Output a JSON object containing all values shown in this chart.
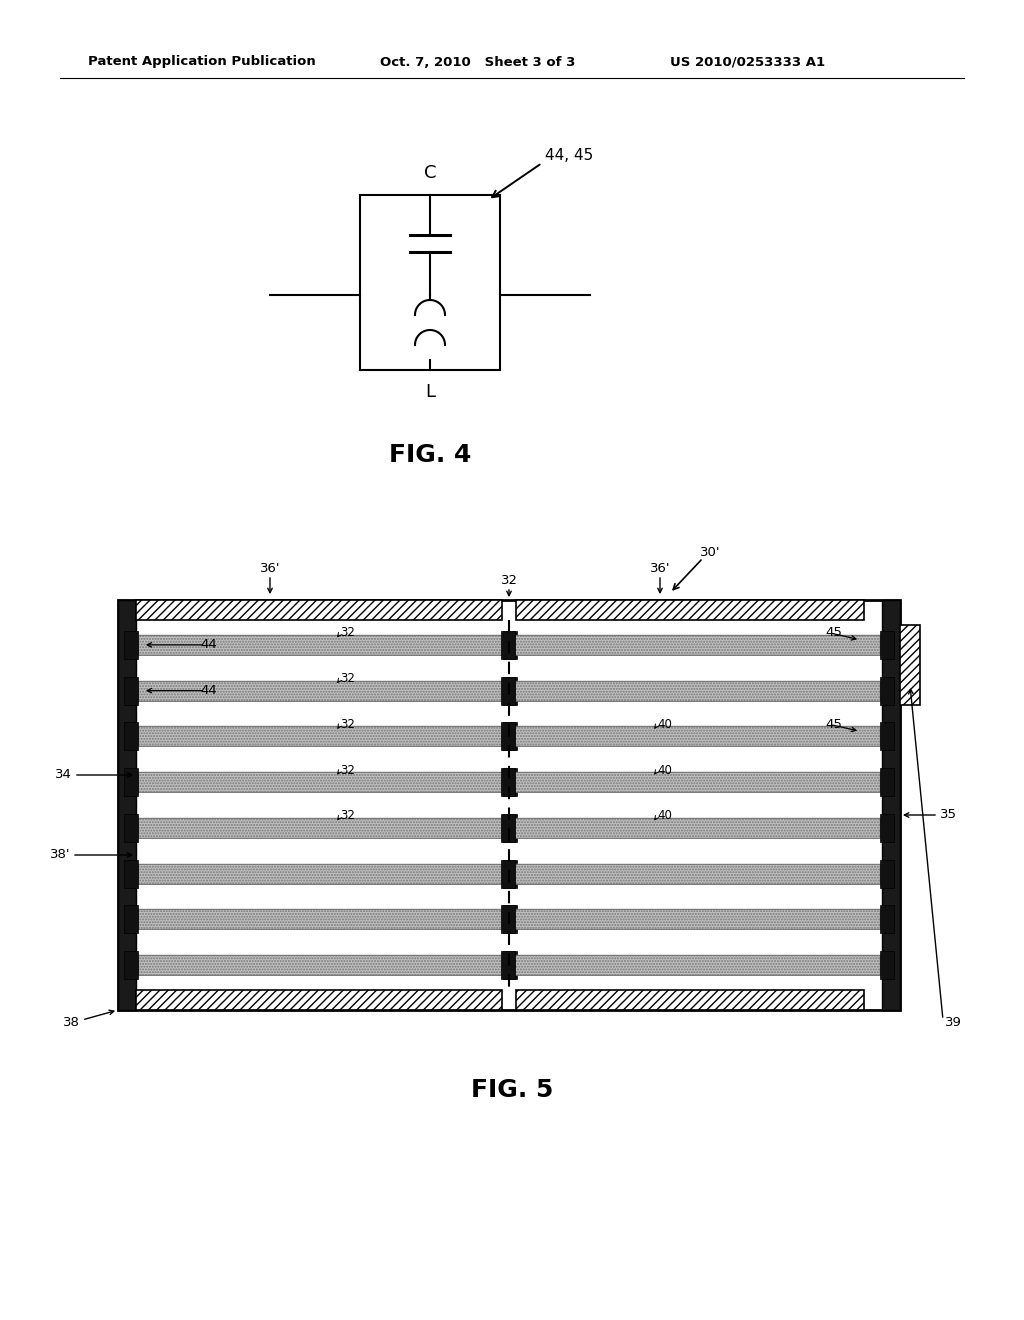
{
  "bg_color": "#ffffff",
  "header_left": "Patent Application Publication",
  "header_mid": "Oct. 7, 2010   Sheet 3 of 3",
  "header_right": "US 2010/0253333 A1",
  "fig4_label": "FIG. 4",
  "fig5_label": "FIG. 5",
  "circuit_label_C": "C",
  "circuit_label_L": "L",
  "circuit_ref": "44, 45",
  "black": "#000000",
  "gray_rung": "#b8b8b8",
  "dark_connector": "#1a1a1a",
  "dark_side": "#2a2a2a"
}
